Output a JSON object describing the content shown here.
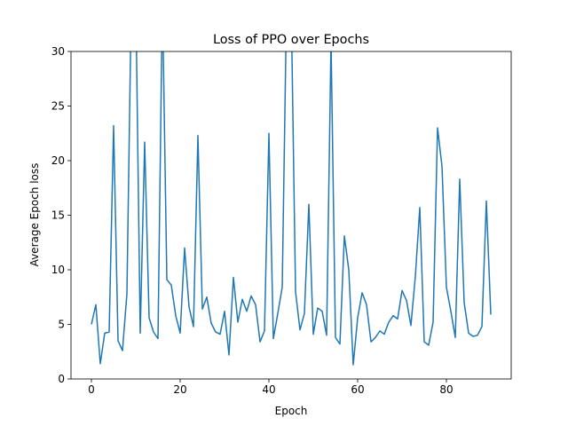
{
  "chart_data": {
    "type": "line",
    "title": "Loss of PPO over Epochs",
    "x_label": "Epoch",
    "y_label": "Average Epoch loss",
    "x": [
      0,
      1,
      2,
      3,
      4,
      5,
      6,
      7,
      8,
      9,
      10,
      11,
      12,
      13,
      14,
      15,
      16,
      17,
      18,
      19,
      20,
      21,
      22,
      23,
      24,
      25,
      26,
      27,
      28,
      29,
      30,
      31,
      32,
      33,
      34,
      35,
      36,
      37,
      38,
      39,
      40,
      41,
      42,
      43,
      44,
      45,
      46,
      47,
      48,
      49,
      50,
      51,
      52,
      53,
      54,
      55,
      56,
      57,
      58,
      59,
      60,
      61,
      62,
      63,
      64,
      65,
      66,
      67,
      68,
      69,
      70,
      71,
      72,
      73,
      74,
      75,
      76,
      77,
      78,
      79,
      80,
      81,
      82,
      83,
      84,
      85,
      86,
      87,
      88,
      89,
      90
    ],
    "series": [
      {
        "color": "#1f77b4",
        "values": [
          5.0,
          6.8,
          1.4,
          4.2,
          4.3,
          23.2,
          3.5,
          2.6,
          7.8,
          35,
          35,
          4.2,
          21.7,
          5.6,
          4.3,
          3.7,
          35,
          9.1,
          8.6,
          5.8,
          4.2,
          12.0,
          6.6,
          4.8,
          22.3,
          6.4,
          7.5,
          5.1,
          4.3,
          4.1,
          6.2,
          2.2,
          9.3,
          5.2,
          7.3,
          6.2,
          7.6,
          6.8,
          3.4,
          4.4,
          22.5,
          3.7,
          6.0,
          8.4,
          35,
          35,
          8.0,
          4.5,
          6.0,
          16.0,
          4.1,
          6.5,
          6.2,
          4.0,
          31,
          3.8,
          3.2,
          13.1,
          10.0,
          1.3,
          5.6,
          7.9,
          6.8,
          3.4,
          3.8,
          4.4,
          4.1,
          5.2,
          5.8,
          5.5,
          8.1,
          7.2,
          4.9,
          9.4,
          15.7,
          3.4,
          3.1,
          5.2,
          23.0,
          19.5,
          8.4,
          6.2,
          3.8,
          18.3,
          7.0,
          4.2,
          3.9,
          4.0,
          4.8,
          16.3,
          5.9
        ]
      }
    ],
    "xlim": [
      -4.6,
      94.6
    ],
    "xticks": [
      0,
      20,
      40,
      60,
      80
    ],
    "ylim": [
      0,
      30
    ],
    "yticks": [
      0,
      5,
      10,
      15,
      20,
      25,
      30
    ]
  }
}
